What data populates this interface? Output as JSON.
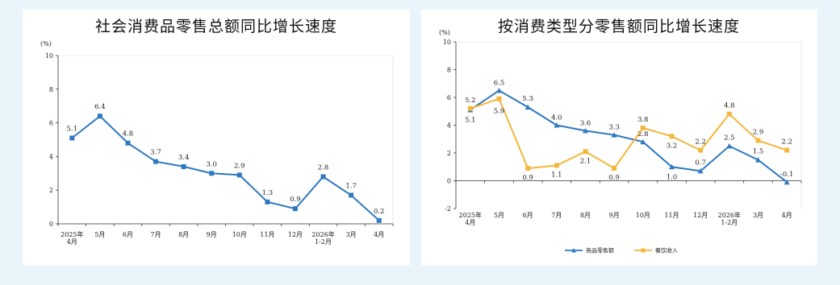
{
  "chart_data": [
    {
      "type": "line",
      "title": "社会消费品零售总额同比增长速度",
      "ylabel": "(%)",
      "ylim": [
        0,
        10
      ],
      "yticks": [
        0,
        2,
        4,
        6,
        8,
        10
      ],
      "grid": false,
      "categories": [
        [
          "2025年",
          "4月"
        ],
        [
          "5月"
        ],
        [
          "6月"
        ],
        [
          "7月"
        ],
        [
          "8月"
        ],
        [
          "9月"
        ],
        [
          "10月"
        ],
        [
          "11月"
        ],
        [
          "12月"
        ],
        [
          "2026年",
          "1-2月"
        ],
        [
          "3月"
        ],
        [
          "4月"
        ]
      ],
      "series": [
        {
          "color": "#2f79c0",
          "marker": "square",
          "values": [
            5.1,
            6.4,
            4.8,
            3.7,
            3.4,
            3.0,
            2.9,
            1.3,
            0.9,
            2.8,
            1.7,
            0.2
          ],
          "labels": [
            "5.1",
            "6.4",
            "4.8",
            "3.7",
            "3.4",
            "3.0",
            "2.9",
            "1.3",
            "0.9",
            "2.8",
            "1.7",
            "0.2"
          ]
        }
      ]
    },
    {
      "type": "line",
      "title": "按消费类型分零售额同比增长速度",
      "ylabel": "(%)",
      "ylim": [
        -2,
        10
      ],
      "yticks": [
        -2,
        0,
        2,
        4,
        6,
        8,
        10
      ],
      "grid": false,
      "legend_position": "bottom",
      "categories": [
        [
          "2025年",
          "4月"
        ],
        [
          "5月"
        ],
        [
          "6月"
        ],
        [
          "7月"
        ],
        [
          "8月"
        ],
        [
          "9月"
        ],
        [
          "10月"
        ],
        [
          "11月"
        ],
        [
          "12月"
        ],
        [
          "2026年",
          "1-2月"
        ],
        [
          "3月"
        ],
        [
          "4月"
        ]
      ],
      "series": [
        {
          "name": "商品零售额",
          "color": "#2f79c0",
          "marker": "triangle",
          "values": [
            5.1,
            6.5,
            5.3,
            4.0,
            3.6,
            3.3,
            2.8,
            1.0,
            0.7,
            2.5,
            1.5,
            -0.1
          ],
          "labels": [
            "5.1",
            "6.5",
            "5.3",
            "4.0",
            "3.6",
            "3.3",
            "2.8",
            "1.0",
            "0.7",
            "2.5",
            "1.5",
            "-0.1"
          ]
        },
        {
          "name": "餐饮收入",
          "color": "#f4b73b",
          "marker": "square",
          "values": [
            5.2,
            5.9,
            0.9,
            1.1,
            2.1,
            0.9,
            3.8,
            3.2,
            2.2,
            4.8,
            2.9,
            2.2
          ],
          "labels": [
            "5.2",
            "5.9",
            "0.9",
            "1.1",
            "2.1",
            "0.9",
            "3.8",
            "3.2",
            "2.2",
            "4.8",
            "2.9",
            "2.2"
          ]
        }
      ]
    }
  ]
}
